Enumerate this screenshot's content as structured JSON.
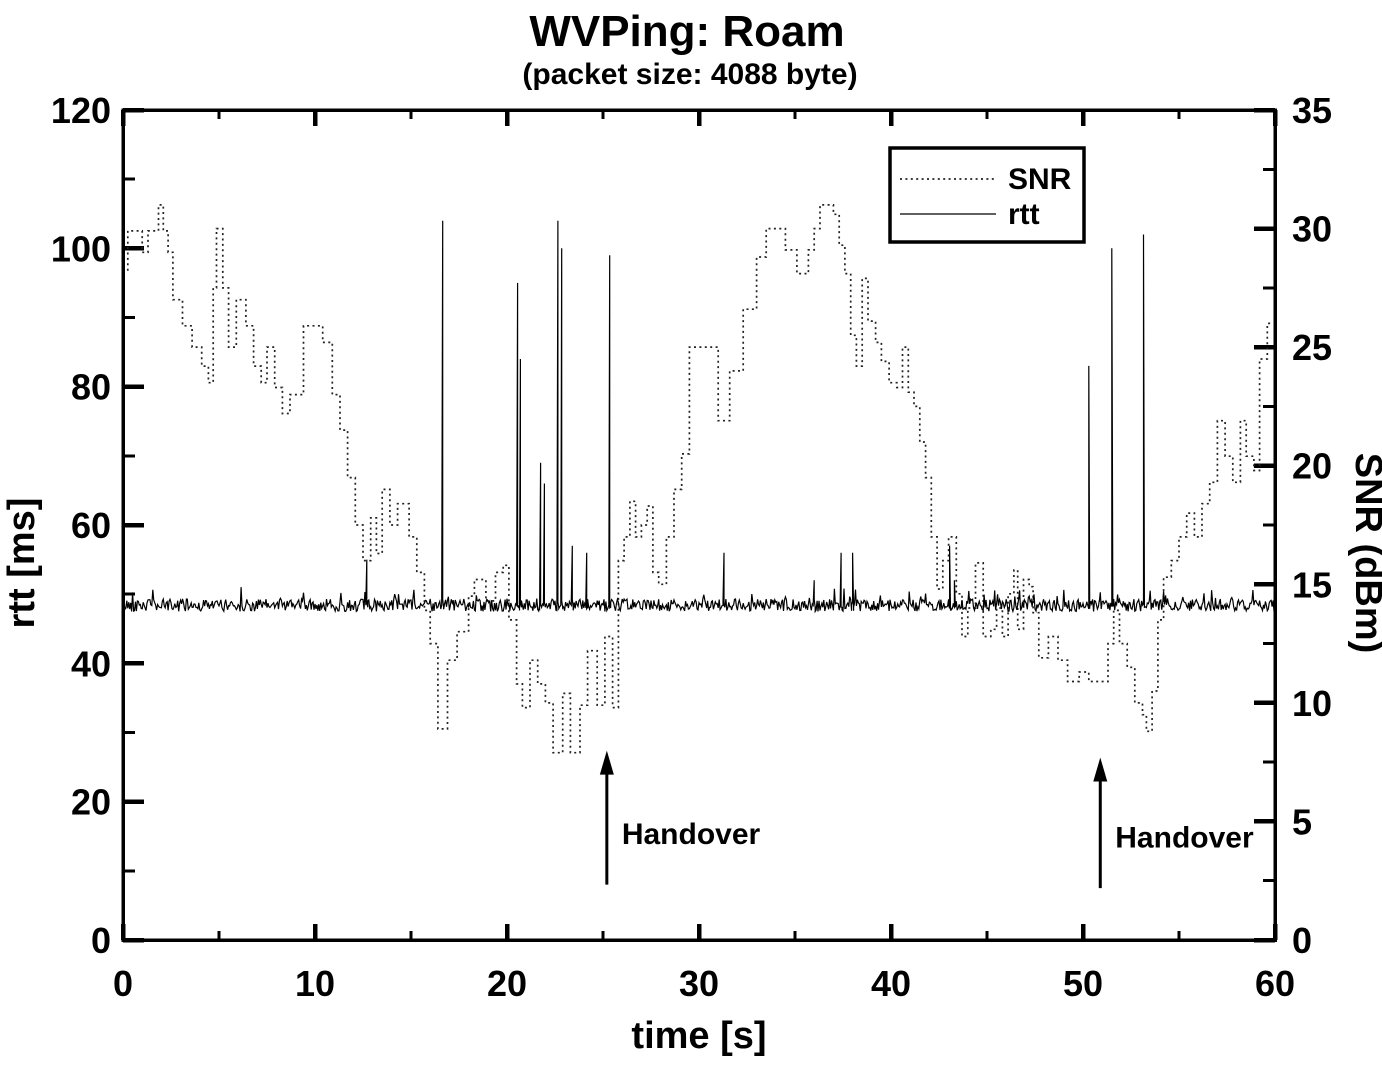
{
  "colors": {
    "background": "#ffffff",
    "foreground": "#000000",
    "rtt_line": "#000000",
    "snr_line": "#222222"
  },
  "legend": {
    "entries": [
      {
        "label": "SNR",
        "line_style": "dotted"
      },
      {
        "label": "rtt",
        "line_style": "solid"
      }
    ]
  },
  "annotations": [
    {
      "label": "Handover",
      "t_s": 25.2,
      "arrow_from_ms": 8,
      "arrow_to_ms": 25.5,
      "label_y_ms": 15.5
    },
    {
      "label": "Handover",
      "t_s": 50.9,
      "arrow_from_ms": 7.5,
      "arrow_to_ms": 24.5,
      "label_y_ms": 15
    }
  ],
  "chart_data": {
    "type": "line",
    "title": "WVPing: Roam",
    "subtitle": "(packet size: 4088 byte)",
    "xlabel": "time [s]",
    "ylabel_left": "rtt [ms]",
    "ylabel_right": "SNR (dBm)",
    "grid": false,
    "legend_position": "top-right-inside",
    "axes": {
      "x": {
        "label": "time [s]",
        "min": 0,
        "max": 60,
        "major_ticks": [
          0,
          10,
          20,
          30,
          40,
          50,
          60
        ],
        "minor_tick_step": 5
      },
      "y_left": {
        "label": "rtt [ms]",
        "min": 0,
        "max": 120,
        "major_ticks": [
          0,
          20,
          40,
          60,
          80,
          100,
          120
        ],
        "minor_tick_step": 10
      },
      "y_right": {
        "label": "SNR (dBm)",
        "min": 0,
        "max": 35,
        "major_ticks": [
          0,
          5,
          10,
          15,
          20,
          25,
          30,
          35
        ],
        "minor_tick_step": 2.5
      }
    },
    "series": [
      {
        "name": "SNR",
        "axis": "right",
        "unit": "dBm",
        "style": "dotted",
        "interpolation": "step-after",
        "points": [
          [
            0,
            28.2
          ],
          [
            0.25,
            29.9
          ],
          [
            1.0,
            29
          ],
          [
            1.3,
            29.9
          ],
          [
            1.85,
            31
          ],
          [
            2.1,
            29.9
          ],
          [
            2.35,
            29
          ],
          [
            2.6,
            27
          ],
          [
            3.1,
            25.9
          ],
          [
            3.6,
            25
          ],
          [
            4.1,
            24.2
          ],
          [
            4.45,
            23.5
          ],
          [
            4.7,
            27.5
          ],
          [
            4.87,
            30
          ],
          [
            5.2,
            27.5
          ],
          [
            5.5,
            25
          ],
          [
            5.9,
            27
          ],
          [
            6.4,
            25.9
          ],
          [
            6.8,
            24.2
          ],
          [
            7.2,
            23.5
          ],
          [
            7.5,
            25
          ],
          [
            7.9,
            23.3
          ],
          [
            8.3,
            22.2
          ],
          [
            8.7,
            23
          ],
          [
            9.4,
            25.9
          ],
          [
            10.4,
            25.2
          ],
          [
            10.9,
            23
          ],
          [
            11.3,
            21.5
          ],
          [
            11.7,
            19.5
          ],
          [
            12.1,
            17.5
          ],
          [
            12.5,
            16
          ],
          [
            12.9,
            17.8
          ],
          [
            13.2,
            16.3
          ],
          [
            13.5,
            19
          ],
          [
            13.9,
            17.5
          ],
          [
            14.3,
            18.4
          ],
          [
            14.9,
            17
          ],
          [
            15.3,
            15.5
          ],
          [
            15.7,
            13.9
          ],
          [
            16,
            12.5
          ],
          [
            16.4,
            8.9
          ],
          [
            16.9,
            11.8
          ],
          [
            17.4,
            13
          ],
          [
            18,
            14.5
          ],
          [
            18.3,
            15.2
          ],
          [
            18.9,
            14.3
          ],
          [
            19.4,
            15.5
          ],
          [
            19.8,
            15.8
          ],
          [
            20.1,
            13.5
          ],
          [
            20.5,
            10.8
          ],
          [
            20.8,
            9.8
          ],
          [
            21.2,
            11.8
          ],
          [
            21.6,
            10.8
          ],
          [
            22,
            10
          ],
          [
            22.4,
            7.9
          ],
          [
            22.9,
            10.4
          ],
          [
            23.3,
            7.9
          ],
          [
            23.8,
            9.9
          ],
          [
            24.2,
            12.2
          ],
          [
            24.7,
            9.9
          ],
          [
            25.1,
            12.8
          ],
          [
            25.5,
            9.8
          ],
          [
            25.8,
            16
          ],
          [
            26.1,
            17
          ],
          [
            26.4,
            18.5
          ],
          [
            26.7,
            17
          ],
          [
            27,
            17.5
          ],
          [
            27.3,
            18.3
          ],
          [
            27.6,
            15.5
          ],
          [
            27.9,
            15
          ],
          [
            28.3,
            17
          ],
          [
            28.7,
            19
          ],
          [
            29.1,
            20.5
          ],
          [
            29.5,
            25
          ],
          [
            31,
            21.9
          ],
          [
            31.6,
            24
          ],
          [
            32.3,
            26.6
          ],
          [
            33,
            28.8
          ],
          [
            33.5,
            30
          ],
          [
            34.5,
            29.1
          ],
          [
            35.1,
            28.1
          ],
          [
            35.7,
            29.1
          ],
          [
            36,
            30
          ],
          [
            36.3,
            31
          ],
          [
            37,
            30.6
          ],
          [
            37.3,
            29.3
          ],
          [
            37.6,
            28.1
          ],
          [
            37.9,
            25.5
          ],
          [
            38.2,
            24.2
          ],
          [
            38.5,
            27.9
          ],
          [
            38.8,
            26.1
          ],
          [
            39.2,
            25.2
          ],
          [
            39.5,
            24.4
          ],
          [
            39.9,
            23.5
          ],
          [
            40.3,
            23.3
          ],
          [
            40.6,
            25
          ],
          [
            40.9,
            23.1
          ],
          [
            41.2,
            22.5
          ],
          [
            41.5,
            21
          ],
          [
            41.8,
            19.5
          ],
          [
            42.1,
            17
          ],
          [
            42.4,
            14.8
          ],
          [
            42.7,
            16
          ],
          [
            43,
            17
          ],
          [
            43.4,
            14.6
          ],
          [
            43.7,
            12.8
          ],
          [
            44,
            14
          ],
          [
            44.4,
            15.9
          ],
          [
            44.8,
            12.8
          ],
          [
            45.2,
            13.1
          ],
          [
            45.5,
            14
          ],
          [
            45.8,
            12.8
          ],
          [
            46.1,
            14.6
          ],
          [
            46.4,
            15.6
          ],
          [
            46.6,
            13.1
          ],
          [
            46.9,
            15.2
          ],
          [
            47.2,
            14.9
          ],
          [
            47.4,
            13.8
          ],
          [
            47.7,
            11.9
          ],
          [
            48.2,
            12.8
          ],
          [
            48.7,
            11.8
          ],
          [
            49.2,
            10.9
          ],
          [
            49.8,
            11.3
          ],
          [
            50.3,
            10.9
          ],
          [
            51.3,
            12.5
          ],
          [
            51.6,
            13.9
          ],
          [
            51.9,
            12.5
          ],
          [
            52.3,
            11.5
          ],
          [
            52.7,
            10
          ],
          [
            53.1,
            9.5
          ],
          [
            53.3,
            8.8
          ],
          [
            53.6,
            10.5
          ],
          [
            53.9,
            13.5
          ],
          [
            54.2,
            15.3
          ],
          [
            54.6,
            16
          ],
          [
            55,
            17
          ],
          [
            55.4,
            18
          ],
          [
            55.8,
            17
          ],
          [
            56.2,
            18.4
          ],
          [
            56.6,
            19.3
          ],
          [
            57,
            21.9
          ],
          [
            57.4,
            20.4
          ],
          [
            57.8,
            19.3
          ],
          [
            58.2,
            21.9
          ],
          [
            58.5,
            20.4
          ],
          [
            58.9,
            19.8
          ],
          [
            59.2,
            24.5
          ],
          [
            59.6,
            26
          ],
          [
            60,
            25.7
          ]
        ]
      },
      {
        "name": "rtt",
        "axis": "left",
        "unit": "ms",
        "style": "solid",
        "baseline_ms": 48.4,
        "noise_amplitude_ms": 1.0,
        "spikes_t_ms": [
          [
            12.7,
            55
          ],
          [
            16.65,
            104
          ],
          [
            20.55,
            95
          ],
          [
            20.7,
            84
          ],
          [
            21.75,
            69
          ],
          [
            21.95,
            66
          ],
          [
            22.65,
            104
          ],
          [
            22.85,
            100
          ],
          [
            23.4,
            57
          ],
          [
            24.15,
            56
          ],
          [
            25.35,
            99
          ],
          [
            31.3,
            56
          ],
          [
            36,
            52
          ],
          [
            37.4,
            56
          ],
          [
            38,
            56
          ],
          [
            43.05,
            57
          ],
          [
            43.3,
            52
          ],
          [
            50.3,
            83
          ],
          [
            53.15,
            102
          ]
        ],
        "handover_ramp": {
          "t_start": 50.85,
          "t_peak": 51.5,
          "peak_ms": 100
        }
      }
    ]
  }
}
